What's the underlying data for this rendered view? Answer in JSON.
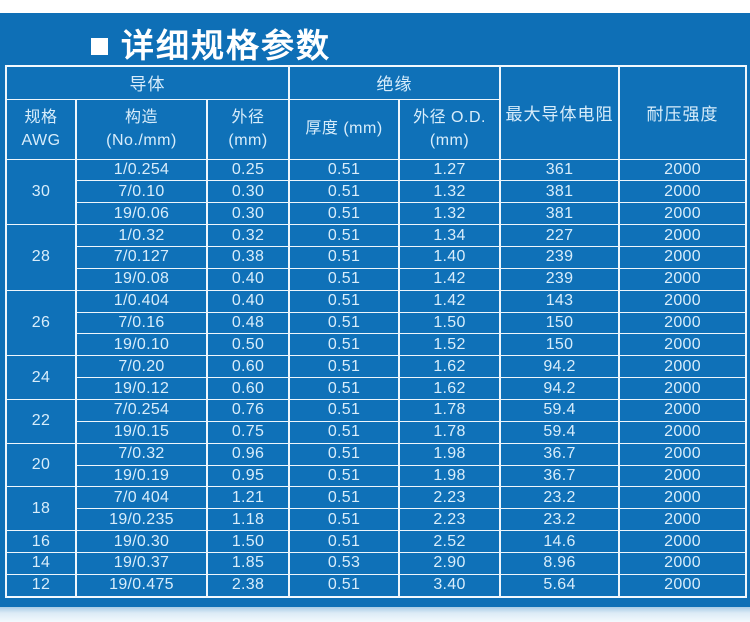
{
  "page": {
    "title": "详细规格参数",
    "colors": {
      "panel_blue": "#0e6fb6",
      "cell_blue": "#0f71b8",
      "grid_white": "#eef6fc",
      "text_light": "#d8edfb",
      "title_white": "#ffffff",
      "bottom_fade": "#dcebf6"
    }
  },
  "table": {
    "header": {
      "conductor": "导体",
      "insulation": "绝缘",
      "max_resistance": "最大导体电阻",
      "voltage": "耐压强度",
      "spec": [
        "规格",
        "AWG"
      ],
      "construction": [
        "构造",
        "(No./mm)"
      ],
      "conductor_od": [
        "外径",
        "(mm)"
      ],
      "thickness": "厚度  (mm)",
      "insulation_od": [
        "外径  O.D.",
        "(mm)"
      ]
    },
    "groups": [
      {
        "awg": "30",
        "rows": [
          [
            "1/0.254",
            "0.25",
            "0.51",
            "1.27",
            "361",
            "2000"
          ],
          [
            "7/0.10",
            "0.30",
            "0.51",
            "1.32",
            "381",
            "2000"
          ],
          [
            "19/0.06",
            "0.30",
            "0.51",
            "1.32",
            "381",
            "2000"
          ]
        ]
      },
      {
        "awg": "28",
        "rows": [
          [
            "1/0.32",
            "0.32",
            "0.51",
            "1.34",
            "227",
            "2000"
          ],
          [
            "7/0.127",
            "0.38",
            "0.51",
            "1.40",
            "239",
            "2000"
          ],
          [
            "19/0.08",
            "0.40",
            "0.51",
            "1.42",
            "239",
            "2000"
          ]
        ]
      },
      {
        "awg": "26",
        "rows": [
          [
            "1/0.404",
            "0.40",
            "0.51",
            "1.42",
            "143",
            "2000"
          ],
          [
            "7/0.16",
            "0.48",
            "0.51",
            "1.50",
            "150",
            "2000"
          ],
          [
            "19/0.10",
            "0.50",
            "0.51",
            "1.52",
            "150",
            "2000"
          ]
        ]
      },
      {
        "awg": "24",
        "rows": [
          [
            "7/0.20",
            "0.60",
            "0.51",
            "1.62",
            "94.2",
            "2000"
          ],
          [
            "19/0.12",
            "0.60",
            "0.51",
            "1.62",
            "94.2",
            "2000"
          ]
        ]
      },
      {
        "awg": "22",
        "rows": [
          [
            "7/0.254",
            "0.76",
            "0.51",
            "1.78",
            "59.4",
            "2000"
          ],
          [
            "19/0.15",
            "0.75",
            "0.51",
            "1.78",
            "59.4",
            "2000"
          ]
        ]
      },
      {
        "awg": "20",
        "rows": [
          [
            "7/0.32",
            "0.96",
            "0.51",
            "1.98",
            "36.7",
            "2000"
          ],
          [
            "19/0.19",
            "0.95",
            "0.51",
            "1.98",
            "36.7",
            "2000"
          ]
        ]
      },
      {
        "awg": "18",
        "rows": [
          [
            "7/0 404",
            "1.21",
            "0.51",
            "2.23",
            "23.2",
            "2000"
          ],
          [
            "19/0.235",
            "1.18",
            "0.51",
            "2.23",
            "23.2",
            "2000"
          ]
        ]
      },
      {
        "awg": "16",
        "rows": [
          [
            "19/0.30",
            "1.50",
            "0.51",
            "2.52",
            "14.6",
            "2000"
          ]
        ]
      },
      {
        "awg": "14",
        "rows": [
          [
            "19/0.37",
            "1.85",
            "0.53",
            "2.90",
            "8.96",
            "2000"
          ]
        ]
      },
      {
        "awg": "12",
        "rows": [
          [
            "19/0.475",
            "2.38",
            "0.51",
            "3.40",
            "5.64",
            "2000"
          ]
        ]
      }
    ],
    "column_names": [
      "awg",
      "construction",
      "conductor_od",
      "thickness",
      "insulation_od",
      "resistance",
      "voltage"
    ]
  }
}
